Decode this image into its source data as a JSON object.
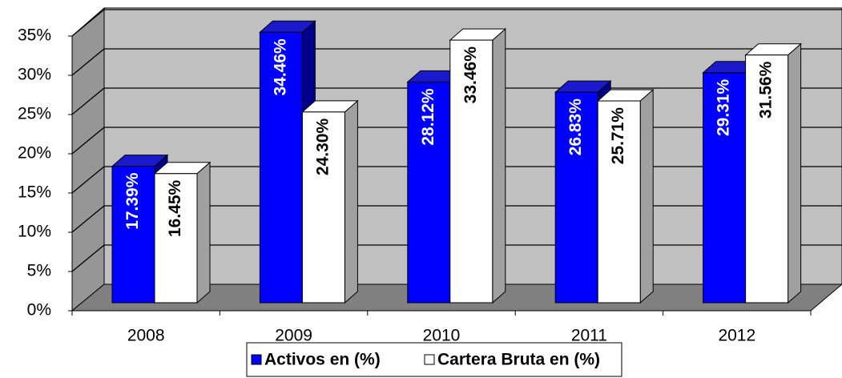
{
  "chart_data": {
    "type": "bar3d",
    "categories": [
      "2008",
      "2009",
      "2010",
      "2011",
      "2012"
    ],
    "series": [
      {
        "name": "Activos en (%)",
        "color": "#0000ff",
        "values": [
          17.39,
          34.46,
          28.12,
          26.83,
          29.31
        ],
        "value_labels": [
          "17.39%",
          "34.46%",
          "28.12%",
          "26.83%",
          "29.31%"
        ]
      },
      {
        "name": "Cartera Bruta en (%)",
        "color": "#ffffff",
        "values": [
          16.45,
          24.3,
          33.46,
          25.71,
          31.56
        ],
        "value_labels": [
          "16.45%",
          "24.30%",
          "33.46%",
          "25.71%",
          "31.56%"
        ]
      }
    ],
    "ylim": [
      0,
      35
    ],
    "yticks": [
      {
        "value": 0,
        "label": "0%"
      },
      {
        "value": 5,
        "label": "5%"
      },
      {
        "value": 10,
        "label": "10%"
      },
      {
        "value": 15,
        "label": "15%"
      },
      {
        "value": 20,
        "label": "20%"
      },
      {
        "value": 25,
        "label": "25%"
      },
      {
        "value": 30,
        "label": "30%"
      },
      {
        "value": 35,
        "label": "35%"
      }
    ],
    "grid": true
  }
}
